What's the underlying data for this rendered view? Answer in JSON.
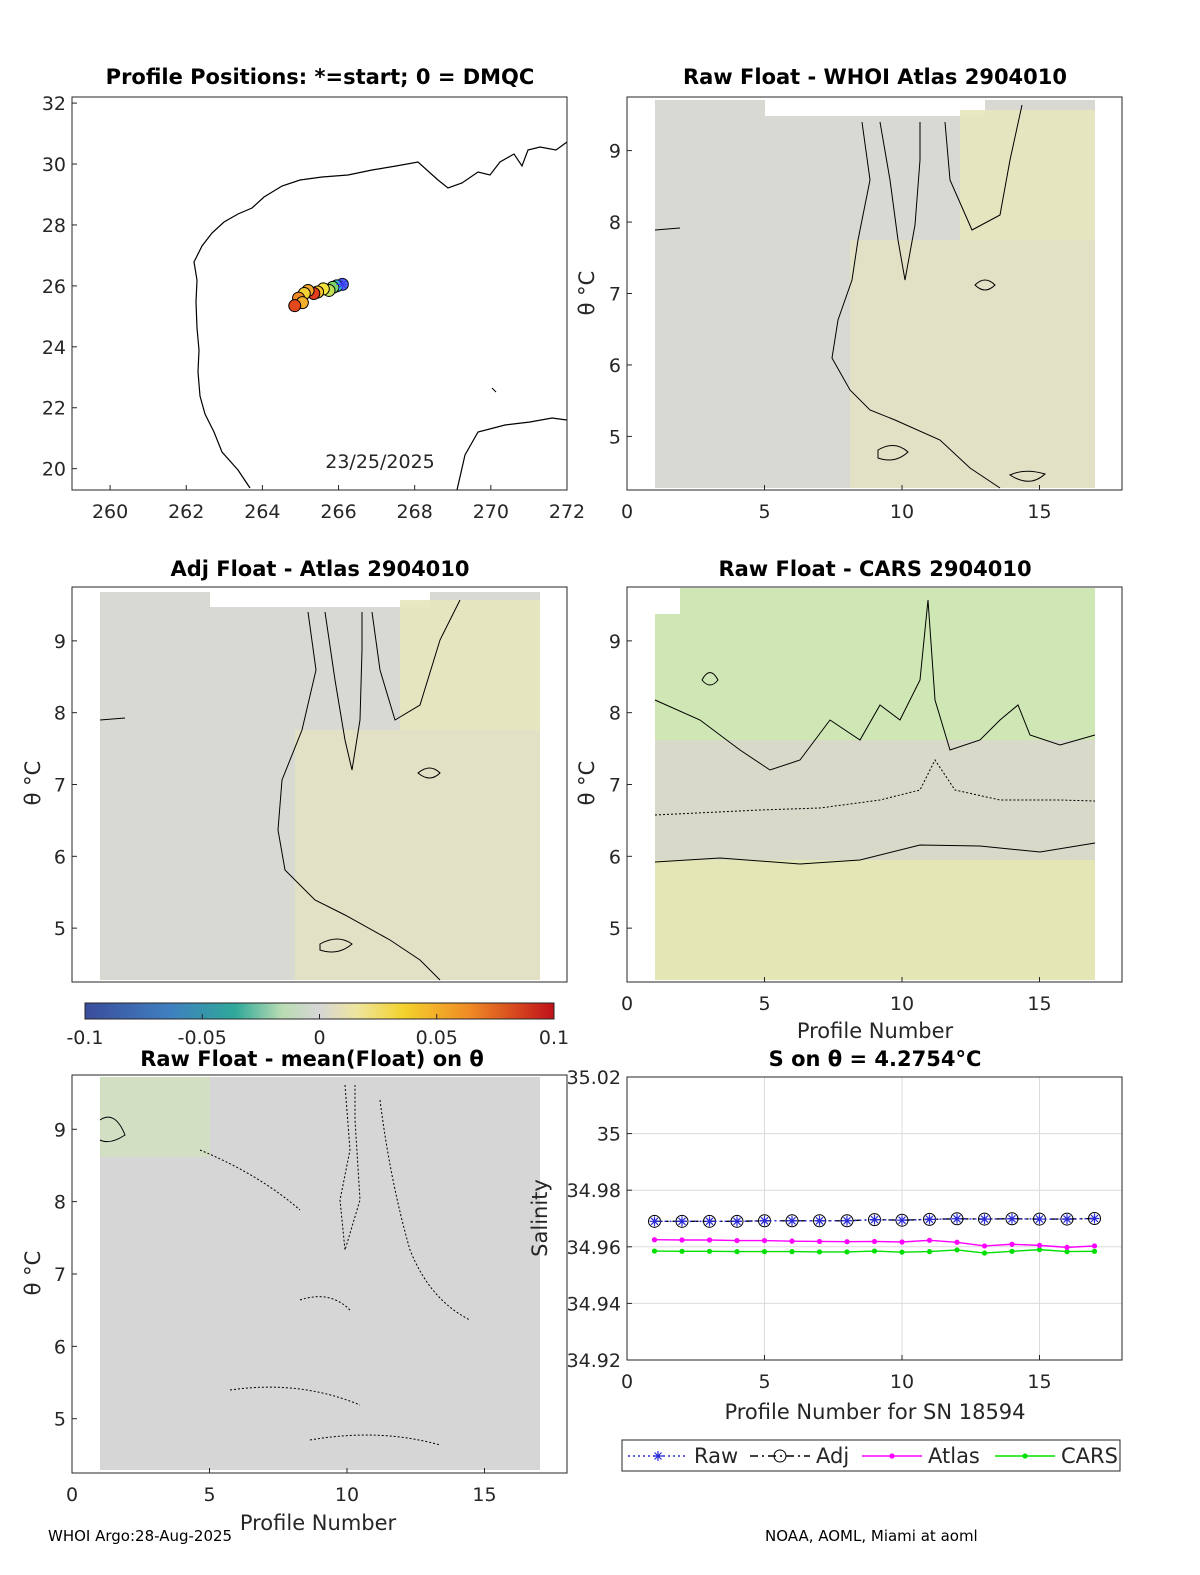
{
  "figure": {
    "footer_left": "WHOI Argo:28-Aug-2025",
    "footer_right": "NOAA, AOML, Miami at aoml"
  },
  "chart_data": [
    {
      "type": "scatter",
      "id": "map",
      "title": "Profile Positions: *=start; 0 = DMQC",
      "xlim": [
        259,
        272
      ],
      "ylim": [
        19.3,
        32.2
      ],
      "x_ticks": [
        260,
        262,
        264,
        266,
        268,
        270,
        272
      ],
      "y_ticks": [
        20,
        22,
        24,
        26,
        28,
        30,
        32
      ],
      "annotation": "23/25/2025",
      "points": [
        {
          "lon": 266.1,
          "lat": 26.05,
          "color": "#4f6ff0"
        },
        {
          "lon": 265.95,
          "lat": 26.0,
          "color": "#2ec4d0"
        },
        {
          "lon": 265.85,
          "lat": 25.95,
          "color": "#7bd66b"
        },
        {
          "lon": 265.75,
          "lat": 25.85,
          "color": "#bfe05a"
        },
        {
          "lon": 265.6,
          "lat": 25.9,
          "color": "#f3e43d"
        },
        {
          "lon": 265.45,
          "lat": 25.8,
          "color": "#f7c531"
        },
        {
          "lon": 265.35,
          "lat": 25.75,
          "color": "#e33c1e"
        },
        {
          "lon": 265.2,
          "lat": 25.85,
          "color": "#f2a72c"
        },
        {
          "lon": 265.1,
          "lat": 25.75,
          "color": "#f4d034"
        },
        {
          "lon": 264.95,
          "lat": 25.6,
          "color": "#f08a25"
        },
        {
          "lon": 265.05,
          "lat": 25.45,
          "color": "#f2b02d"
        },
        {
          "lon": 264.85,
          "lat": 25.35,
          "color": "#e3481c"
        }
      ]
    },
    {
      "type": "heatmap",
      "id": "whoi",
      "title": "Raw Float - WHOI Atlas  2904010",
      "xlim": [
        0,
        18
      ],
      "ylim": [
        4.25,
        9.75
      ],
      "x_ticks": [
        0,
        5,
        10,
        15
      ],
      "y_ticks": [
        5,
        6,
        7,
        8,
        9
      ],
      "ylabel": "θ °C"
    },
    {
      "type": "heatmap",
      "id": "adj",
      "title": "Adj Float - Atlas  2904010",
      "xlim": [
        0,
        18
      ],
      "ylim": [
        4.25,
        9.75
      ],
      "y_ticks": [
        5,
        6,
        7,
        8,
        9
      ],
      "ylabel": "θ °C"
    },
    {
      "type": "heatmap",
      "id": "cars",
      "title": "Raw Float - CARS  2904010",
      "xlim": [
        0,
        18
      ],
      "ylim": [
        4.25,
        9.75
      ],
      "x_ticks": [
        0,
        5,
        10,
        15
      ],
      "y_ticks": [
        5,
        6,
        7,
        8,
        9
      ],
      "ylabel": "θ °C",
      "xlabel": "Profile Number"
    },
    {
      "type": "heatmap",
      "id": "mean",
      "title": "Raw Float - mean(Float) on θ",
      "xlim": [
        0,
        18
      ],
      "ylim": [
        4.25,
        9.75
      ],
      "x_ticks": [
        0,
        5,
        10,
        15
      ],
      "y_ticks": [
        5,
        6,
        7,
        8,
        9
      ],
      "ylabel": "θ °C",
      "xlabel": "Profile Number"
    },
    {
      "type": "colorbar",
      "id": "colorbar",
      "range": [
        -0.1,
        0.1
      ],
      "tick_labels": [
        "-0.1",
        "-0.05",
        "0",
        "0.05",
        "0.1"
      ]
    },
    {
      "type": "line",
      "id": "salinity",
      "title": "S on θ = 4.2754°C",
      "xlabel": "Profile Number for SN 18594",
      "ylabel": "Salinity",
      "xlim": [
        0,
        18
      ],
      "ylim": [
        34.92,
        35.02
      ],
      "x_ticks": [
        0,
        5,
        10,
        15
      ],
      "y_tick_labels": [
        "34.92",
        "34.94",
        "34.96",
        "34.98",
        "35",
        "35.02"
      ],
      "x": [
        1,
        2,
        3,
        4,
        5,
        6,
        7,
        8,
        9,
        10,
        11,
        12,
        13,
        14,
        15,
        16,
        17
      ],
      "series": [
        {
          "name": "Raw",
          "color": "#2b2bd6",
          "values": [
            34.969,
            34.969,
            34.969,
            34.969,
            34.9692,
            34.9692,
            34.9692,
            34.9692,
            34.9696,
            34.9694,
            34.9697,
            34.9699,
            34.9698,
            34.9699,
            34.9698,
            34.9698,
            34.97
          ]
        },
        {
          "name": "Adj",
          "color": "#000000",
          "values": [
            34.969,
            34.969,
            34.969,
            34.969,
            34.9692,
            34.9692,
            34.9692,
            34.9692,
            34.9696,
            34.9694,
            34.9697,
            34.9699,
            34.9698,
            34.9699,
            34.9698,
            34.9698,
            34.97
          ]
        },
        {
          "name": "Atlas",
          "color": "#ff00ff",
          "values": [
            34.9625,
            34.9624,
            34.9624,
            34.9622,
            34.9622,
            34.962,
            34.9619,
            34.9618,
            34.9619,
            34.9617,
            34.9623,
            34.9616,
            34.9603,
            34.9609,
            34.9605,
            34.9598,
            34.9603
          ]
        },
        {
          "name": "CARS",
          "color": "#00e000",
          "values": [
            34.9585,
            34.9584,
            34.9584,
            34.9583,
            34.9583,
            34.9583,
            34.9582,
            34.9582,
            34.9585,
            34.9581,
            34.9583,
            34.9589,
            34.9578,
            34.9584,
            34.959,
            34.9583,
            34.9584
          ]
        }
      ]
    }
  ]
}
